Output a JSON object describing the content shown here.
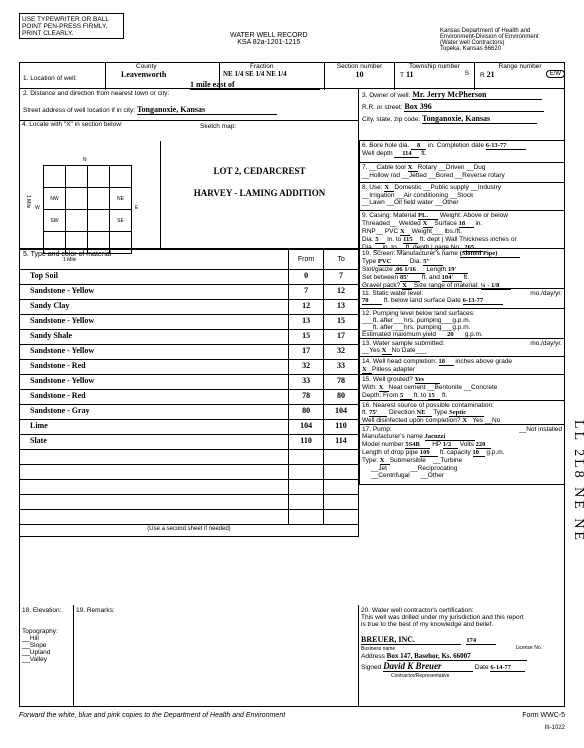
{
  "header": {
    "instruction": "USE TYPEWRITER OR BALL POINT PEN-PRESS FIRMLY, PRINT CLEARLY.",
    "title1": "WATER WELL RECORD",
    "title2": "KSA 82a-1201-1215",
    "agency1": "Kansas Department of Health and",
    "agency2": "Environment-Division of Environment",
    "agency3": "(Water well Contractors)",
    "agency4": "Topeka, Kansas 66620"
  },
  "row1": {
    "loc_label": "1. Location of well:",
    "county_label": "County",
    "county": "Leavenworth",
    "fraction_label": "Fraction",
    "fraction": "NE 1/4 SE 1/4 NE 1/4",
    "section_label": "Section number",
    "section": "10",
    "township_label": "Township number",
    "township_t": "T",
    "township": "11",
    "township_s": "S",
    "range_label": "Range number",
    "range_r": "R",
    "range": "21",
    "range_ew": "E/W"
  },
  "row2": {
    "q2a": "2. Distance and direction from nearest town or city:",
    "dist": "1 mile east of",
    "addr_label": "Street address of well location if in city:",
    "addr": "Tonganoxie, Kansas",
    "q3": "3. Owner of well:",
    "rr": "R.R. or street:",
    "csz": "City, state, zip code:",
    "owner": "Mr. Jerry McPherson",
    "box": "Box 396",
    "city": "Tonganoxie, Kansas"
  },
  "row4": {
    "q4": "4. Locate with \"X\" in section below:",
    "sketch": "Sketch map:",
    "lot": "LOT 2, CEDARCREST",
    "addition": "HARVEY - LAMING ADDITION",
    "mile": "1 Mile",
    "dirs": [
      "NW",
      "NE",
      "W",
      "E",
      "SW",
      "SE",
      "N",
      "S"
    ]
  },
  "right": {
    "q6": "6. Bore hole dia.",
    "q6v": "8",
    "q6b": "in. Completion date",
    "q6d": "6-13-77",
    "q6c": "Well depth",
    "q6dv": "114",
    "q6e": "ft.",
    "q7": "7.",
    "q7a": "Cable tool",
    "q7x1": "X",
    "q7b": "Rotary",
    "q7c": "Driven",
    "q7d": "Dug",
    "q7e": "Hollow rod",
    "q7f": "Jetted",
    "q7g": "Bored",
    "q7h": "Reverse rotary",
    "q8": "8. Use:",
    "q8x": "X",
    "q8a": "Domestic",
    "q8b": "Public supply",
    "q8c": "Industry",
    "q8d": "Irrigation",
    "q8e": "Air conditioning",
    "q8f": "Stock",
    "q8g": "Lawn",
    "q8h": "Oil field water",
    "q8i": "Other",
    "q9": "9. Casing: Material",
    "q9v": "PL.",
    "q9a": "Weight: Above or below",
    "q9b": "Threaded",
    "q9c": "Welded",
    "q9cx": "X",
    "q9d": "Surface",
    "q9dv": "18",
    "q9e": "in.",
    "q9f": "RNP",
    "q9g": "PVC",
    "q9gx": "X",
    "q9h": "Weight",
    "q9i": "lbs./ft.",
    "q9j": "Dia.",
    "q9jv": "5",
    "q9k": "in. to",
    "q9kv": "115",
    "q9l": "ft. dept",
    "q9m": "Wall Thickness inches or",
    "q9n": "Dia.",
    "q9o": "in. to",
    "q9p": "ft. depth",
    "q9q": "gage No.",
    "q9qv": ".265",
    "q10": "10. Screen: Manufacturer's name",
    "q10v": "(Slotted Pipe)",
    "q10a": "Type",
    "q10av": "PVC",
    "q10b": "Dia.",
    "q10bv": "5\"",
    "q10c": "Slot/gauze",
    "q10cv": ".06 1/16",
    "q10d": "Length",
    "q10dv": "19'",
    "q10e": "Set between",
    "q10ev": "85'",
    "q10f": "ft. and",
    "q10fv": "104'",
    "q10g": "ft.",
    "q10h": "Gravel pack?",
    "q10hx": "X",
    "q10i": "Size range of material:",
    "q10iv": "¼ - 1/8",
    "q11": "11. Static water level:",
    "q11a": "mo./day/yr.",
    "q11v": "70",
    "q11b": "ft. below land surface Date",
    "q11d": "6-13-77",
    "q12": "12. Pumping level below land surfaces:",
    "q12a": "ft. after",
    "q12b": "hrs. pumping",
    "q12c": "g.p.m.",
    "q12d": "Estimated maximum yield",
    "q12dv": "20",
    "q12e": "g.p.m.",
    "q13": "13. Water sample submitted:",
    "q13a": "mo./day/yr.",
    "q13b": "Yes",
    "q13x": "X",
    "q13c": "No",
    "q13d": "Date",
    "q14": "14. Well head completion:",
    "q14x": "X",
    "q14a": "Pitless adapter",
    "q14v": "18",
    "q14b": "inches above grade",
    "q15": "15. Well grouted?",
    "q15v": "Yes",
    "q15a": "With:",
    "q15x": "X",
    "q15b": "Neat cement",
    "q15c": "Bentonite",
    "q15d": "Concrete",
    "q15e": "Depth: From",
    "q15ev": "5",
    "q15f": "ft. to",
    "q15fv": "15",
    "q15g": "ft.",
    "q16": "16. Nearest source of possible contamination:",
    "q16a": "ft.",
    "q16av": "75'",
    "q16b": "Direction",
    "q16bv": "NE",
    "q16c": "Type",
    "q16cv": "Septic",
    "q16d": "Well disinfected upon completion?",
    "q16x": "X",
    "q16e": "Yes",
    "q16f": "No",
    "q17": "17. Pump:",
    "q17a": "Not installed",
    "q17b": "Manufacturer's name",
    "q17bv": "Jacuzzi",
    "q17c": "Model number",
    "q17cv": "5S4B",
    "q17d": "HP",
    "q17dv": "1/2",
    "q17e": "Volts",
    "q17ev": "220",
    "q17f": "Length of drop pipe",
    "q17fv": "109",
    "q17g": "ft. capacity",
    "q17gv": "10",
    "q17h": "g.p.m.",
    "q17i": "Type:",
    "q17x": "X",
    "q17j": "Submersible",
    "q17k": "Turbine",
    "q17l": "Jet",
    "q17m": "Reciprocating",
    "q17n": "Centrifugal",
    "q17o": "Other"
  },
  "materials": {
    "q5": "5. Type and color of material",
    "from": "From",
    "to": "To",
    "rows": [
      {
        "m": "Top Soil",
        "f": "0",
        "t": "7"
      },
      {
        "m": "Sandstone - Yellow",
        "f": "7",
        "t": "12"
      },
      {
        "m": "Sandy Clay",
        "f": "12",
        "t": "13"
      },
      {
        "m": "Sandstone - Yellow",
        "f": "13",
        "t": "15"
      },
      {
        "m": "Sandy Shale",
        "f": "15",
        "t": "17"
      },
      {
        "m": "Sandstone - Yellow",
        "f": "17",
        "t": "32"
      },
      {
        "m": "Sandstone - Red",
        "f": "32",
        "t": "33"
      },
      {
        "m": "Sandstone - Yellow",
        "f": "33",
        "t": "78"
      },
      {
        "m": "Sandstone - Red",
        "f": "78",
        "t": "80"
      },
      {
        "m": "Sandstone - Gray",
        "f": "80",
        "t": "104"
      },
      {
        "m": "Lime",
        "f": "104",
        "t": "110"
      },
      {
        "m": "Slate",
        "f": "110",
        "t": "114"
      }
    ],
    "second_sheet": "(Use a second sheet if needed)"
  },
  "bottom": {
    "q18": "18. Elevation:",
    "q19": "19. Remarks:",
    "topo": "Topography:",
    "hill": "Hill",
    "slope": "Slope",
    "upland": "Upland",
    "valley": "Valley",
    "q20": "20. Water well contractor's certification:",
    "cert1": "This well was drilled under my jurisdiction and this report",
    "cert2": "is true to the best of my knowledge and belief.",
    "bus_label": "Business name",
    "bus": "BREUER, INC.",
    "lic_label": "License No.",
    "lic": "174",
    "addr_label": "Address",
    "addr": "Box 147, Basehor, Ks. 66007",
    "signed": "Signed",
    "sig": "David K Breuer",
    "role": "Contractor/Representative",
    "date_label": "Date",
    "date": "6-14-77"
  },
  "footer": {
    "note": "Forward the white, blue and pink copies to the Department of Health and Environment",
    "form": "Form WWC-5",
    "code": "III-1022"
  },
  "margin": "LL 2L8 NE NE"
}
